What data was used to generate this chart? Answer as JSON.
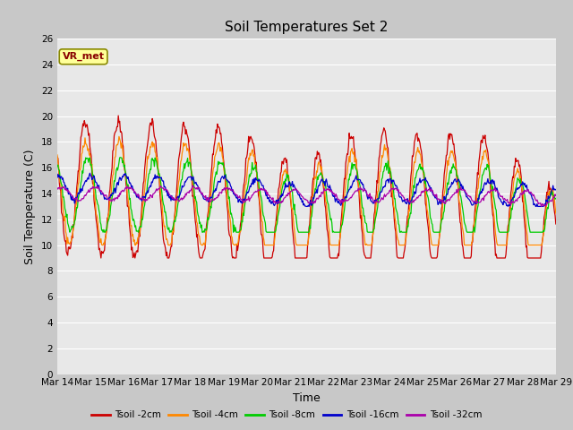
{
  "title": "Soil Temperatures Set 2",
  "xlabel": "Time",
  "ylabel": "Soil Temperature (C)",
  "ylim": [
    0,
    26
  ],
  "yticks": [
    0,
    2,
    4,
    6,
    8,
    10,
    12,
    14,
    16,
    18,
    20,
    22,
    24,
    26
  ],
  "n_days": 15,
  "xtick_labels": [
    "Mar 14",
    "Mar 15",
    "Mar 16",
    "Mar 17",
    "Mar 18",
    "Mar 19",
    "Mar 20",
    "Mar 21",
    "Mar 22",
    "Mar 23",
    "Mar 24",
    "Mar 25",
    "Mar 26",
    "Mar 27",
    "Mar 28",
    "Mar 29"
  ],
  "series_colors": [
    "#cc0000",
    "#ff8800",
    "#00cc00",
    "#0000cc",
    "#aa00aa"
  ],
  "series_labels": [
    "Tsoil -2cm",
    "Tsoil -4cm",
    "Tsoil -8cm",
    "Tsoil -16cm",
    "Tsoil -32cm"
  ],
  "legend_label": "VR_met",
  "legend_bg": "#ffff99",
  "legend_border": "#888800",
  "title_fontsize": 11,
  "axis_label_fontsize": 9,
  "tick_fontsize": 7.5
}
